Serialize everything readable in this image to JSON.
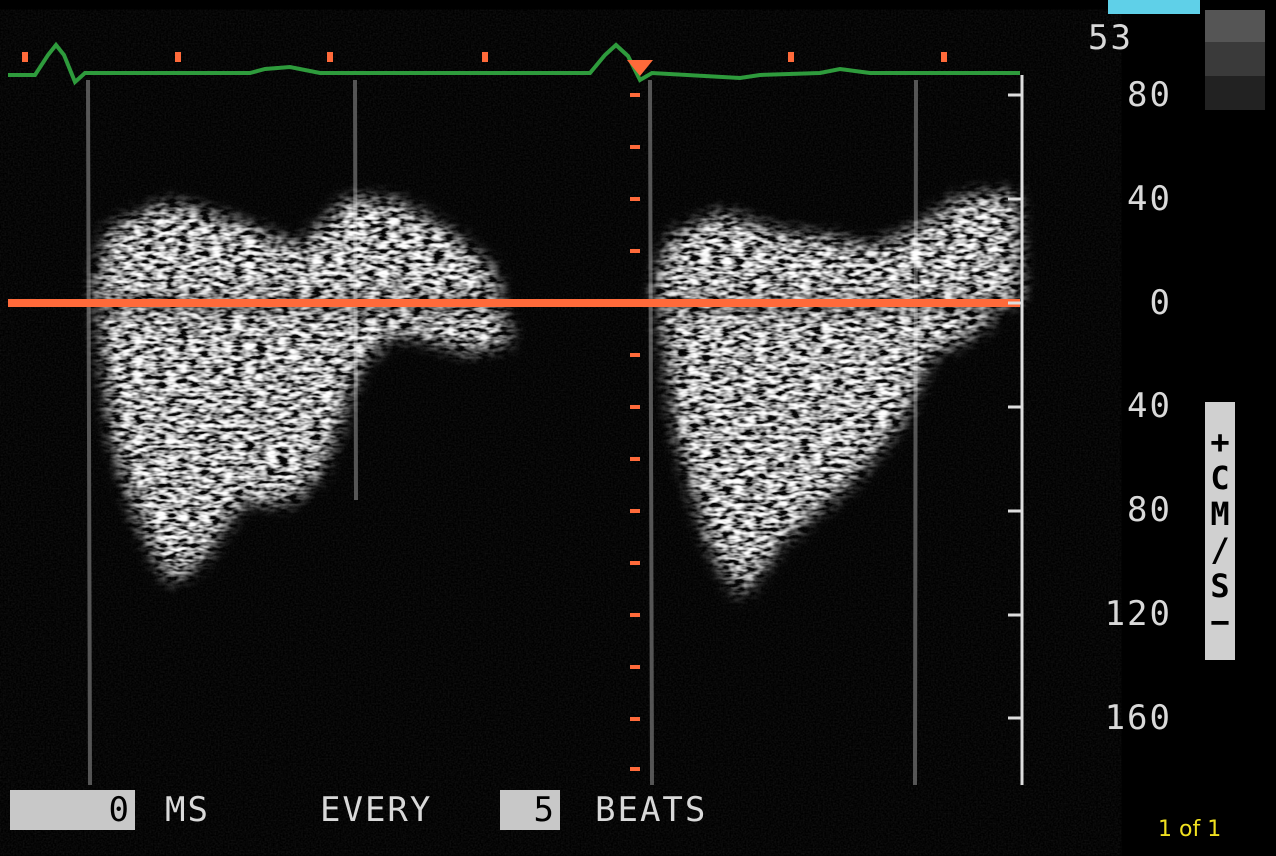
{
  "header": {
    "frame_rate": "53"
  },
  "scale": {
    "labels": [
      "80",
      "40",
      "0",
      "40",
      "80",
      "120",
      "160"
    ],
    "unit": "+CM/S−"
  },
  "footer": {
    "delay_value": "0",
    "delay_unit": "MS",
    "every": "EVERY",
    "beats_value": "5",
    "beats": "BEATS",
    "page": "1 of 1"
  }
}
